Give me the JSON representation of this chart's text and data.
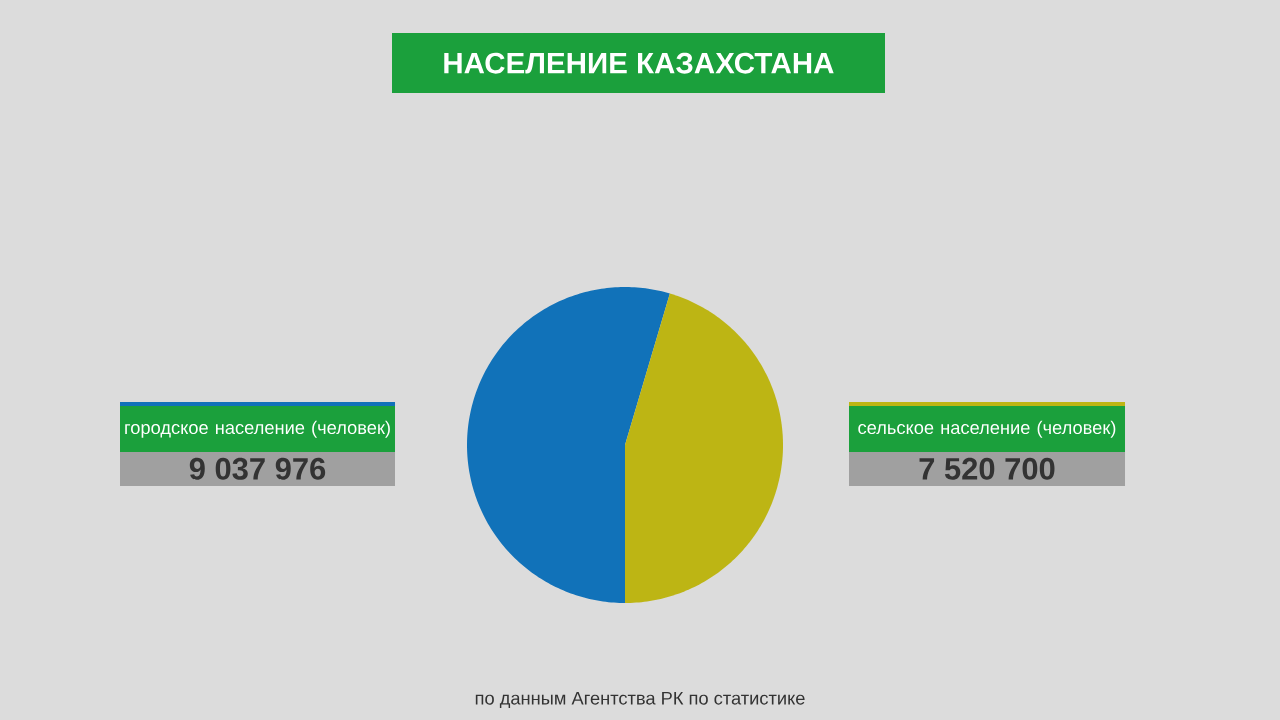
{
  "chart_data": {
    "type": "pie",
    "title": "НАСЕЛЕНИЕ КАЗАХСТАНА",
    "categories": [
      "городское население (человек)",
      "сельское население (человек)"
    ],
    "values": [
      9037976,
      7520700
    ],
    "value_labels": [
      "9 037 976",
      "7 520 700"
    ],
    "colors": [
      "#1172b9",
      "#bdb514"
    ],
    "annotations": [
      "по данным Агентства РК по статистике"
    ]
  }
}
